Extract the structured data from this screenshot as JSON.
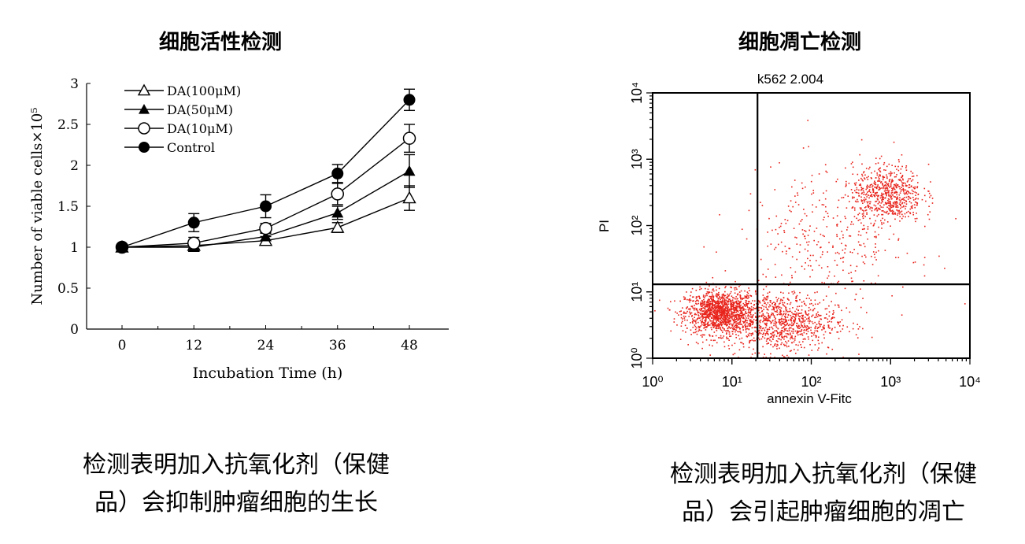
{
  "titles": {
    "left": "细胞活性检测",
    "right": "细胞凋亡检测"
  },
  "captions": {
    "left_line1": "检测表明加入抗氧化剂（保健",
    "left_line2": "品）会抑制肿瘤细胞的生长",
    "right_line1": "检测表明加入抗氧化剂（保健",
    "right_line2": "品）会引起肿瘤细胞的凋亡"
  },
  "chart_data": [
    {
      "type": "line",
      "title": "细胞活性检测",
      "xlabel": "Incubation Time (h)",
      "ylabel": "Number of viable cells×10⁵",
      "x": [
        0,
        12,
        24,
        36,
        48
      ],
      "x_tick_labels": [
        "0",
        "12",
        "24",
        "36",
        "48"
      ],
      "y_tick_labels": [
        "0",
        "0.5",
        "1",
        "1.5",
        "2",
        "2.5",
        "3"
      ],
      "ylim": [
        0,
        3
      ],
      "legend_position": "top-left",
      "series": [
        {
          "name": "DA(100μM)",
          "marker": "open-triangle",
          "values": [
            1.0,
            1.02,
            1.08,
            1.24,
            1.6
          ],
          "errors": [
            0.03,
            0.05,
            0.05,
            0.06,
            0.15
          ]
        },
        {
          "name": "DA(50μM)",
          "marker": "filled-triangle",
          "values": [
            1.0,
            1.0,
            1.13,
            1.42,
            1.93
          ],
          "errors": [
            0.03,
            0.05,
            0.05,
            0.08,
            0.2
          ]
        },
        {
          "name": "DA(10μM)",
          "marker": "open-circle",
          "values": [
            1.0,
            1.05,
            1.23,
            1.65,
            2.33
          ],
          "errors": [
            0.03,
            0.07,
            0.06,
            0.13,
            0.17
          ]
        },
        {
          "name": "Control",
          "marker": "filled-circle",
          "values": [
            1.0,
            1.3,
            1.5,
            1.9,
            2.8
          ],
          "errors": [
            0.03,
            0.11,
            0.14,
            0.11,
            0.13
          ]
        }
      ]
    },
    {
      "type": "scatter",
      "title": "细胞凋亡检测",
      "plot_label": "k562 2.004",
      "xlabel": "annexin V-Fitc",
      "ylabel": "PI",
      "x_scale": "log",
      "y_scale": "log",
      "xlim": [
        1,
        10000
      ],
      "ylim": [
        1,
        10000
      ],
      "x_tick_labels": [
        "10⁰",
        "10¹",
        "10²",
        "10³",
        "10⁴"
      ],
      "y_tick_labels": [
        "10⁰",
        "10¹",
        "10²",
        "10³",
        "10⁴"
      ],
      "gates": {
        "x": 21,
        "y": 13
      },
      "point_color": "#e8231b",
      "clusters": [
        {
          "name": "",
          "center": [
            7,
            5
          ],
          "spread": [
            0.22,
            0.16
          ],
          "count": 1300
        },
        {
          "name": "",
          "center": [
            40,
            3.5
          ],
          "spread": [
            0.35,
            0.22
          ],
          "count": 900
        },
        {
          "name": "",
          "center": [
            900,
            300
          ],
          "spread": [
            0.22,
            0.22
          ],
          "count": 650
        },
        {
          "name": "",
          "center": [
            150,
            60
          ],
          "spread": [
            0.55,
            0.55
          ],
          "count": 350
        }
      ]
    }
  ]
}
